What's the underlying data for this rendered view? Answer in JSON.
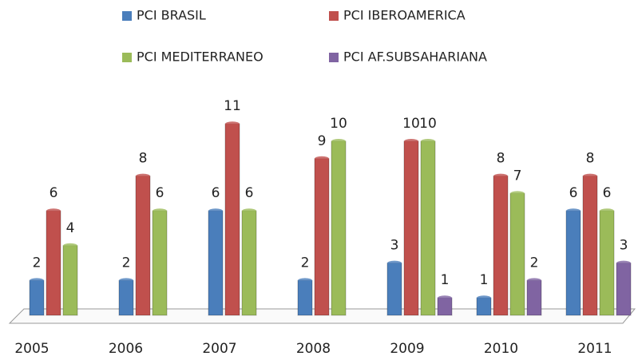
{
  "chart_data": {
    "type": "bar",
    "categories": [
      "2005",
      "2006",
      "2007",
      "2008",
      "2009",
      "2010",
      "2011"
    ],
    "series": [
      {
        "name": "PCI BRASIL",
        "color": "#4a7ebb",
        "values": [
          2,
          2,
          6,
          2,
          3,
          1,
          6
        ]
      },
      {
        "name": "PCI IBEROAMERICA",
        "color": "#c0504d",
        "values": [
          6,
          8,
          11,
          9,
          10,
          8,
          8
        ]
      },
      {
        "name": "PCI MEDITERRANEO",
        "color": "#9bbb59",
        "values": [
          4,
          6,
          6,
          10,
          10,
          7,
          6
        ]
      },
      {
        "name": "PCI AF.SUBSAHARIANA",
        "color": "#8064a2",
        "values": [
          null,
          null,
          null,
          null,
          1,
          2,
          3
        ]
      }
    ]
  }
}
